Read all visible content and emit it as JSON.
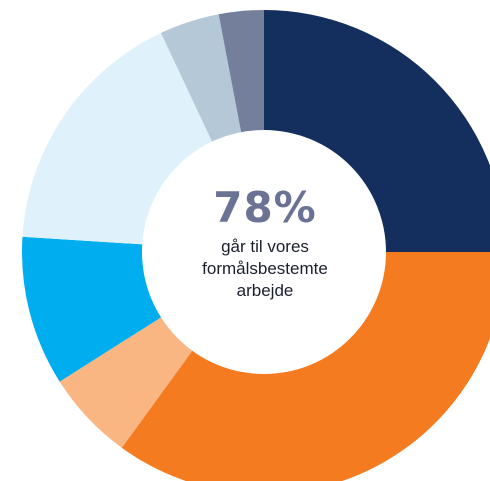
{
  "colors": {
    "center_value": "#6b7394",
    "center_text": "#1a1f2e",
    "hole": "#ffffff"
  },
  "chart_data": {
    "type": "pie",
    "donut": true,
    "center_label": {
      "value": "78%",
      "lines": [
        "går til vores",
        "formålsbestemte",
        "arbejde"
      ]
    },
    "slices": [
      {
        "value": 25,
        "color": "#142f5e"
      },
      {
        "value": 35,
        "color": "#f47b20"
      },
      {
        "value": 6,
        "color": "#f9b683"
      },
      {
        "value": 10,
        "color": "#00aeef"
      },
      {
        "value": 17,
        "color": "#dff1fb"
      },
      {
        "value": 4,
        "color": "#b4c8d8"
      },
      {
        "value": 3,
        "color": "#737f9b"
      }
    ]
  }
}
